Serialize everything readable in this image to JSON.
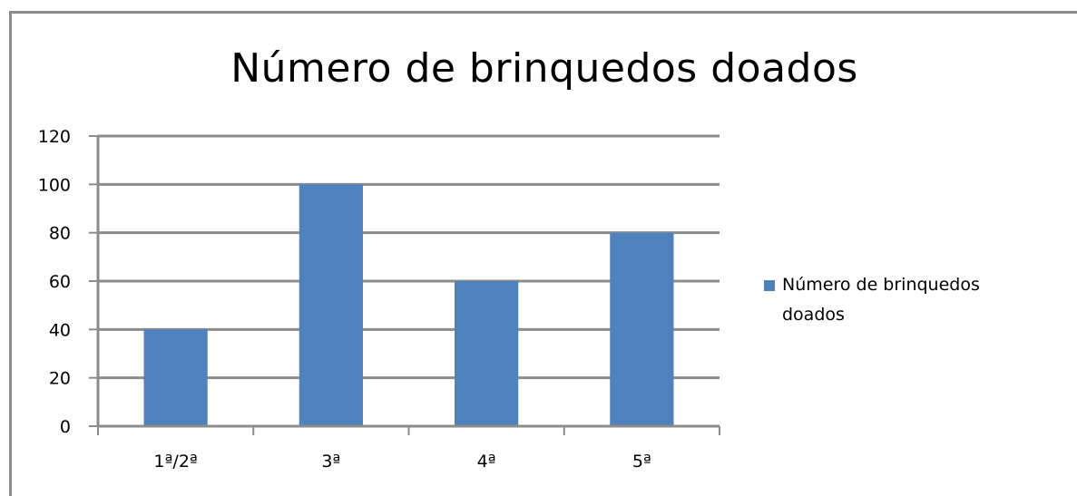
{
  "chart_data": {
    "type": "bar",
    "title": "Número de brinquedos doados",
    "categories": [
      "1ª/2ª",
      "3ª",
      "4ª",
      "5ª"
    ],
    "series": [
      {
        "name": "Número de brinquedos doados",
        "values": [
          40,
          100,
          60,
          80
        ],
        "color": "#4f81bd"
      }
    ],
    "xlabel": "",
    "ylabel": "",
    "ylim": [
      0,
      120
    ],
    "y_ticks": [
      "0",
      "20",
      "40",
      "60",
      "80",
      "100",
      "120"
    ],
    "grid": true,
    "legend": "right"
  }
}
